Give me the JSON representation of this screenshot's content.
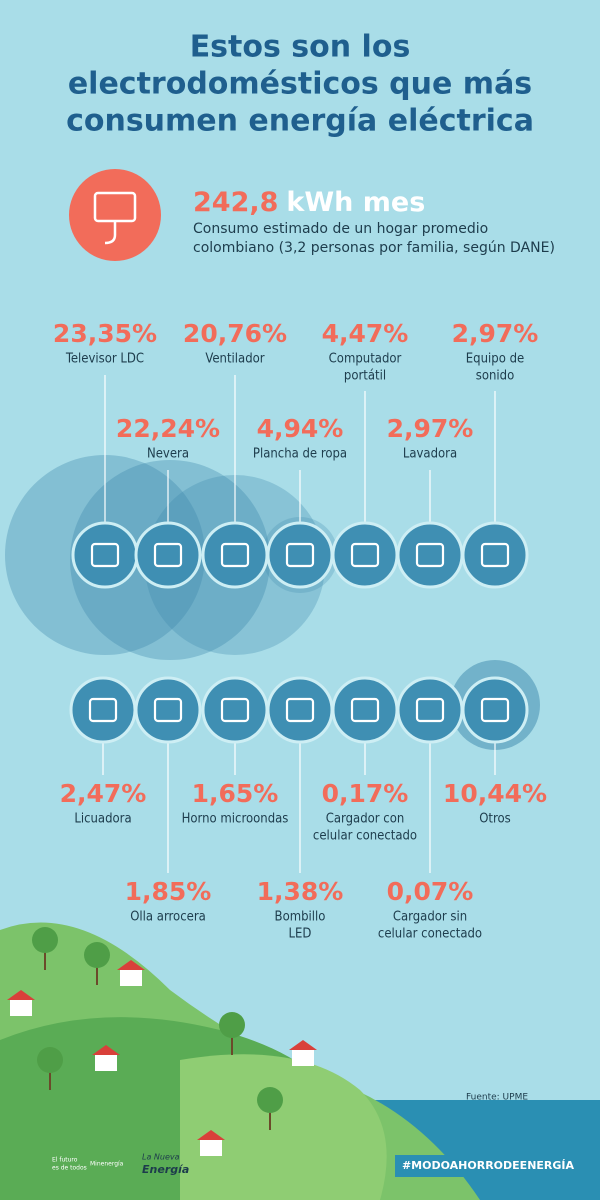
{
  "title": [
    "Estos son los",
    "electrodomésticos que más",
    "consumen energía eléctrica"
  ],
  "header": {
    "amount": "242,8",
    "unit": "kWh mes",
    "description": [
      "Consumo estimado de un hogar promedio",
      "colombiano (3,2 personas por familia, según DANE)"
    ]
  },
  "items": [
    {
      "percent": "23,35%",
      "label": [
        "Televisor LDC"
      ]
    },
    {
      "percent": "22,24%",
      "label": [
        "Nevera"
      ]
    },
    {
      "percent": "20,76%",
      "label": [
        "Ventilador"
      ]
    },
    {
      "percent": "4,94%",
      "label": [
        "Plancha de ropa"
      ]
    },
    {
      "percent": "4,47%",
      "label": [
        "Computador",
        "portátil"
      ]
    },
    {
      "percent": "2,97%",
      "label": [
        "Lavadora"
      ]
    },
    {
      "percent": "2,97%",
      "label": [
        "Equipo de",
        "sonido"
      ]
    },
    {
      "percent": "2,47%",
      "label": [
        "Licuadora"
      ]
    },
    {
      "percent": "1,85%",
      "label": [
        "Olla arrocera"
      ]
    },
    {
      "percent": "1,65%",
      "label": [
        "Horno microondas"
      ]
    },
    {
      "percent": "1,38%",
      "label": [
        "Bombillo",
        "LED"
      ]
    },
    {
      "percent": "0,17%",
      "label": [
        "Cargador con",
        "celular conectado"
      ]
    },
    {
      "percent": "0,07%",
      "label": [
        "Cargador sin",
        "celular conectado"
      ]
    },
    {
      "percent": "10,44%",
      "label": [
        "Otros"
      ]
    }
  ],
  "source": "Fuente: UPME",
  "hashtag": "#MODOAHORRODEENERGÍA",
  "logos": [
    "El futuro",
    "es de todos",
    "Minenergía",
    "La Nueva",
    "Energía"
  ]
}
